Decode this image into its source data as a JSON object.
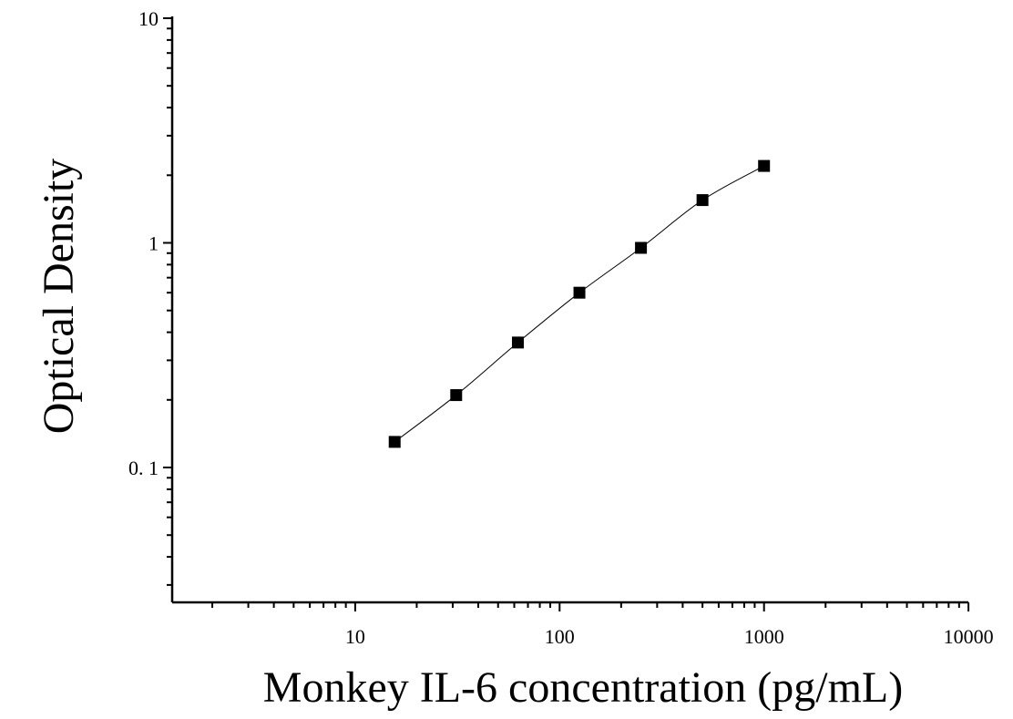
{
  "chart_data": {
    "type": "scatter",
    "x_scale": "log",
    "y_scale": "log",
    "xlabel": "Monkey IL-6 concentration (pg/mL)",
    "ylabel": "Optical Density",
    "xlim": [
      1,
      10000
    ],
    "ylim": [
      0.025,
      10
    ],
    "x_tick_labels": [
      {
        "value": 10,
        "label": "10"
      },
      {
        "value": 100,
        "label": "100"
      },
      {
        "value": 1000,
        "label": "1000"
      },
      {
        "value": 10000,
        "label": "10000"
      }
    ],
    "y_tick_labels": [
      {
        "value": 0.1,
        "label": "0. 1"
      },
      {
        "value": 1,
        "label": "1"
      },
      {
        "value": 10,
        "label": "10"
      }
    ],
    "grid": false,
    "legend": "none",
    "series": [
      {
        "x": [
          15.6,
          31.2,
          62.5,
          125,
          250,
          500,
          1000
        ],
        "y": [
          0.13,
          0.21,
          0.36,
          0.6,
          0.95,
          1.55,
          2.2
        ],
        "marker": "square",
        "fit_line": true
      }
    ]
  }
}
